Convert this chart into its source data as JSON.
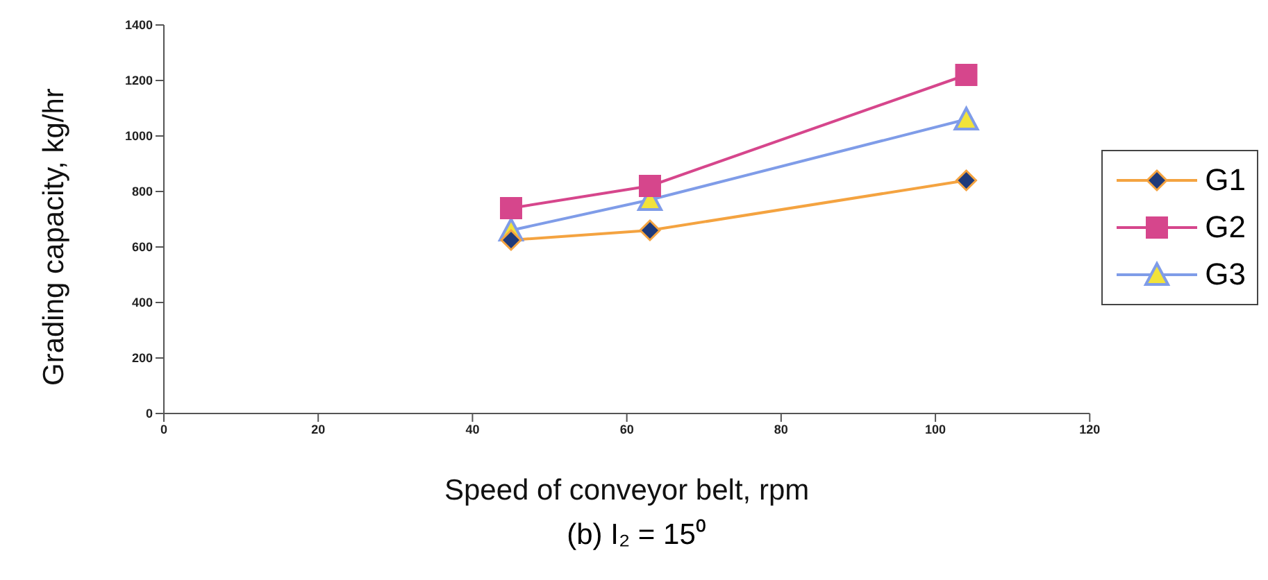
{
  "chart_data": {
    "type": "line",
    "xlabel": "Speed of conveyor belt, rpm",
    "ylabel": "Grading capacity, kg/hr",
    "annotations": [
      "(b) I₂ = 15⁰"
    ],
    "x": [
      45,
      63,
      104
    ],
    "series": [
      {
        "name": "G1",
        "color": "#f4a340",
        "marker": "diamond",
        "values": [
          625,
          660,
          840
        ]
      },
      {
        "name": "G2",
        "color": "#d6468c",
        "marker": "square",
        "values": [
          740,
          820,
          1220
        ]
      },
      {
        "name": "G3",
        "color": "#7f9ce8",
        "marker": "triangle",
        "values": [
          660,
          770,
          1060
        ]
      }
    ],
    "xlim": [
      0,
      120
    ],
    "xticks": [
      0,
      20,
      40,
      60,
      80,
      100,
      120
    ],
    "ylim": [
      0,
      1400
    ],
    "yticks": [
      0,
      200,
      400,
      600,
      800,
      1000,
      1200,
      1400
    ],
    "grid": false,
    "legend": "right",
    "line_style": "solid"
  }
}
